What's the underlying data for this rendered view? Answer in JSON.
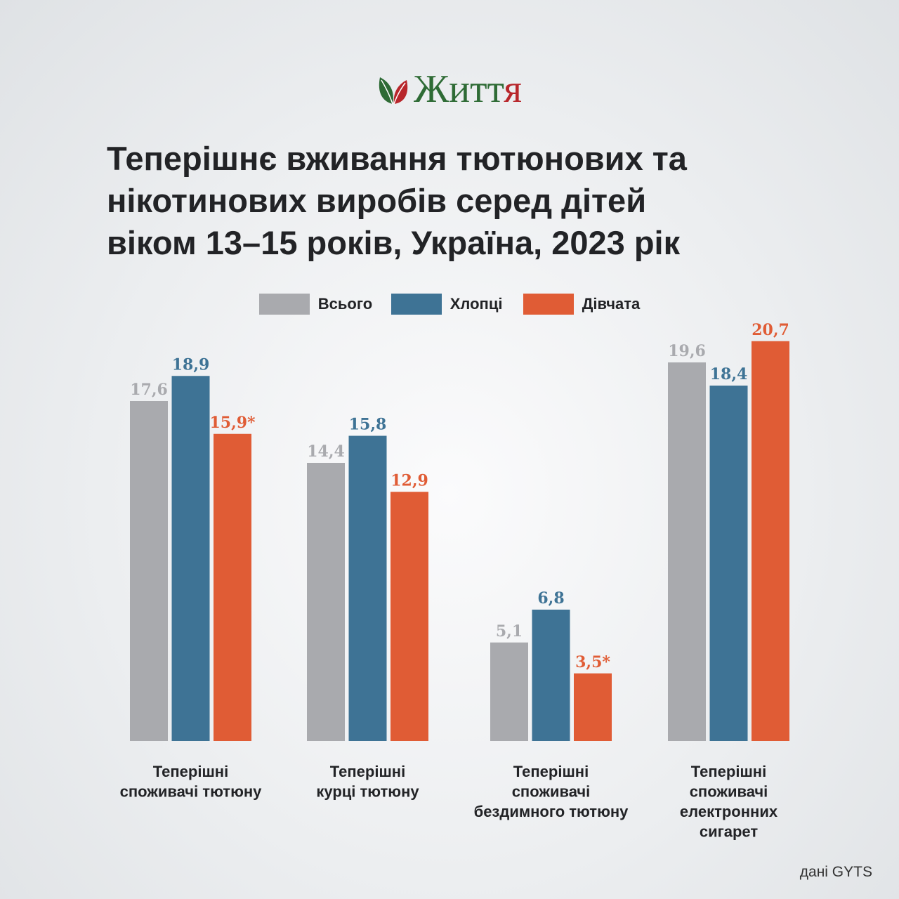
{
  "brand": {
    "name_part1": "Житт",
    "name_part2": "я",
    "colors": {
      "green": "#2e6b35",
      "red": "#b8262b"
    },
    "icon": "leaves-icon"
  },
  "title_lines": [
    "Теперішнє вживання тютюнових та",
    "нікотинових виробів серед дітей",
    "віком 13–15 років, Україна, 2023 рік"
  ],
  "source": "дані GYTS",
  "chart_data": {
    "type": "bar",
    "title": "Теперішнє вживання тютюнових та нікотинових виробів серед дітей віком 13–15 років, Україна, 2023 рік",
    "legend_position": "top-center",
    "grid": false,
    "ylim": [
      0,
      21
    ],
    "categories": [
      [
        "Теперішні",
        "споживачі тютюну"
      ],
      [
        "Теперішні",
        "курці тютюну"
      ],
      [
        "Теперішні",
        "споживачі",
        "бездимного тютюну"
      ],
      [
        "Теперішні",
        "споживачі",
        "електронних",
        "сигарет"
      ]
    ],
    "series": [
      {
        "name": "Всього",
        "color": "#a9aaae",
        "values": [
          17.6,
          14.4,
          5.1,
          19.6
        ],
        "labels": [
          "17,6",
          "14,4",
          "5,1",
          "19,6"
        ]
      },
      {
        "name": "Хлопці",
        "color": "#3e7395",
        "values": [
          18.9,
          15.8,
          6.8,
          18.4
        ],
        "labels": [
          "18,9",
          "15,8",
          "6,8",
          "18,4"
        ]
      },
      {
        "name": "Дівчата",
        "color": "#e05c35",
        "values": [
          15.9,
          12.9,
          3.5,
          20.7
        ],
        "labels": [
          "15,9*",
          "12,9",
          "3,5*",
          "20,7"
        ]
      }
    ]
  }
}
